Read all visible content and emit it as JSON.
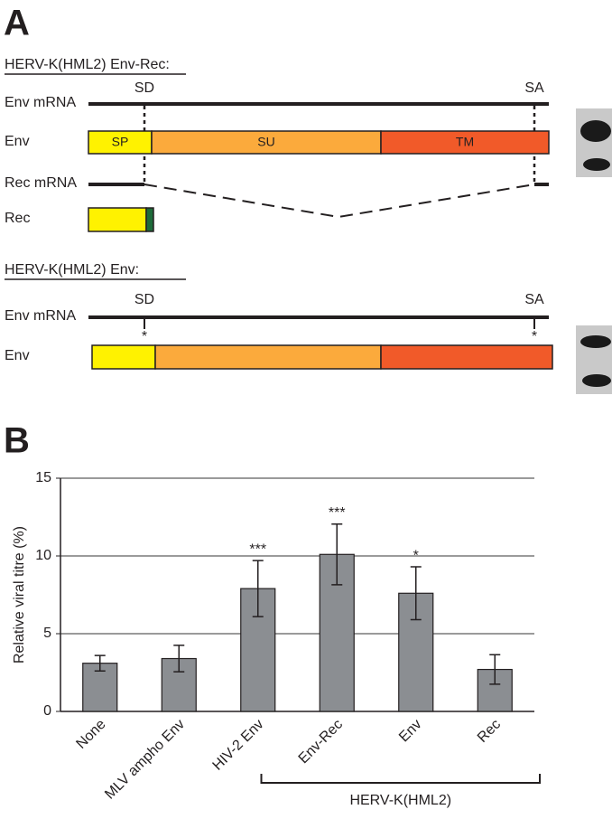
{
  "panel_a": {
    "label": "A",
    "constructs": [
      {
        "title": "HERV-K(HML2) Env-Rec:",
        "env_mrna": "Env mRNA",
        "sd": "SD",
        "sa": "SA",
        "env": "Env",
        "domains": [
          "SP",
          "SU",
          "TM"
        ],
        "rec_mrna": "Rec mRNA",
        "rec": "Rec"
      },
      {
        "title": "HERV-K(HML2) Env:",
        "env_mrna": "Env mRNA",
        "sd": "SD",
        "sa": "SA",
        "mutations": [
          "*",
          "*"
        ],
        "env": "Env"
      }
    ]
  },
  "panel_b_label": "B",
  "chart_data": {
    "type": "bar",
    "y_label": "Relative viral titre (%)",
    "categories": [
      "None",
      "MLV ampho Env",
      "HIV-2 Env",
      "Env-Rec",
      "Env",
      "Rec"
    ],
    "values": [
      3.1,
      3.4,
      7.9,
      10.1,
      7.6,
      2.7
    ],
    "errors": [
      0.5,
      0.85,
      1.8,
      1.95,
      1.7,
      0.95
    ],
    "annotations": [
      null,
      null,
      "***",
      "***",
      "*",
      null
    ],
    "group_label": "HERV-K(HML2)",
    "color": "#8b8e92",
    "ylim": [
      0,
      15
    ],
    "yticks": [
      0,
      5,
      10,
      15
    ],
    "grid": true
  }
}
